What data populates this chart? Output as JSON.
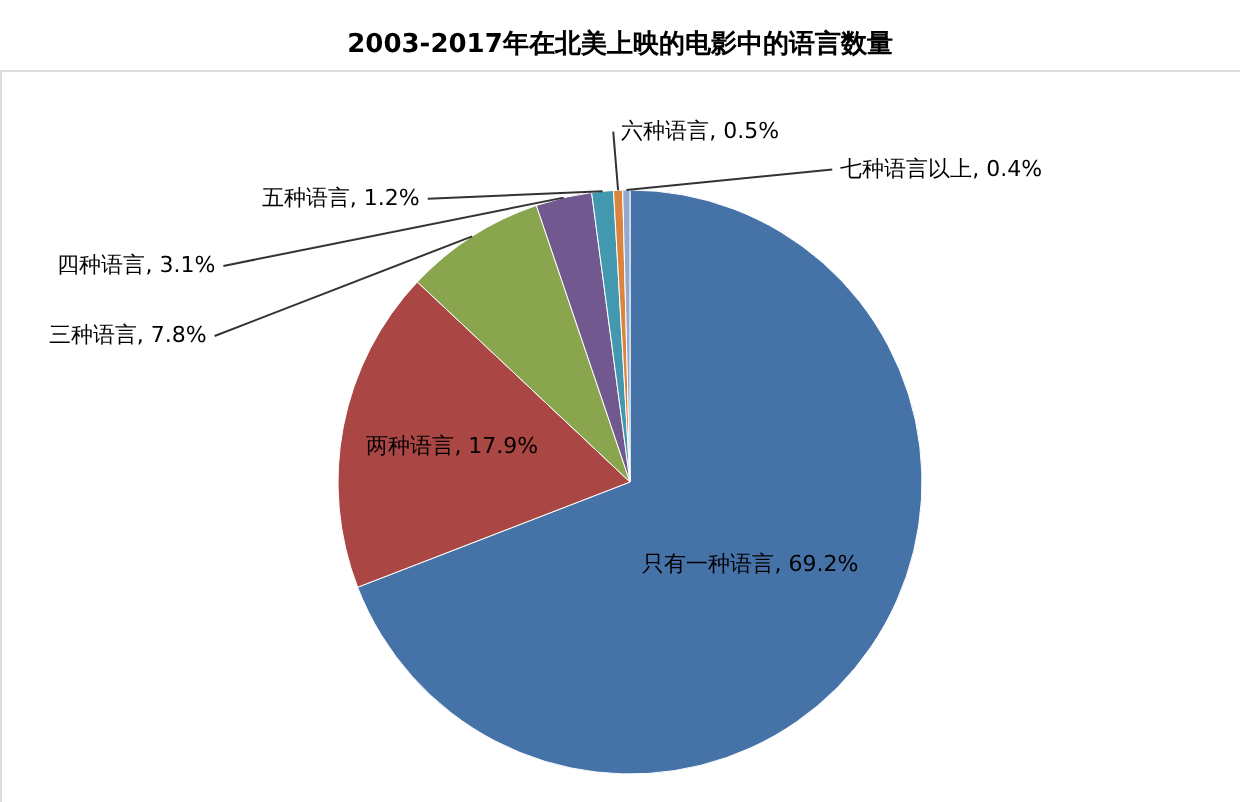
{
  "chart_data": {
    "type": "pie",
    "title": "2003-2017年在北美上映的电影中的语言数量",
    "categories": [
      "只有一种语言",
      "两种语言",
      "三种语言",
      "四种语言",
      "五种语言",
      "六种语言",
      "七种语言以上"
    ],
    "values": [
      69.2,
      17.9,
      7.8,
      3.1,
      1.2,
      0.5,
      0.4
    ],
    "value_labels": [
      "69.2%",
      "17.9%",
      "7.8%",
      "3.1%",
      "1.2%",
      "0.5%",
      "0.4%"
    ],
    "colors": [
      "#4572a7",
      "#aa4643",
      "#89a54e",
      "#71588f",
      "#4198af",
      "#db843d",
      "#93a9cf"
    ]
  }
}
